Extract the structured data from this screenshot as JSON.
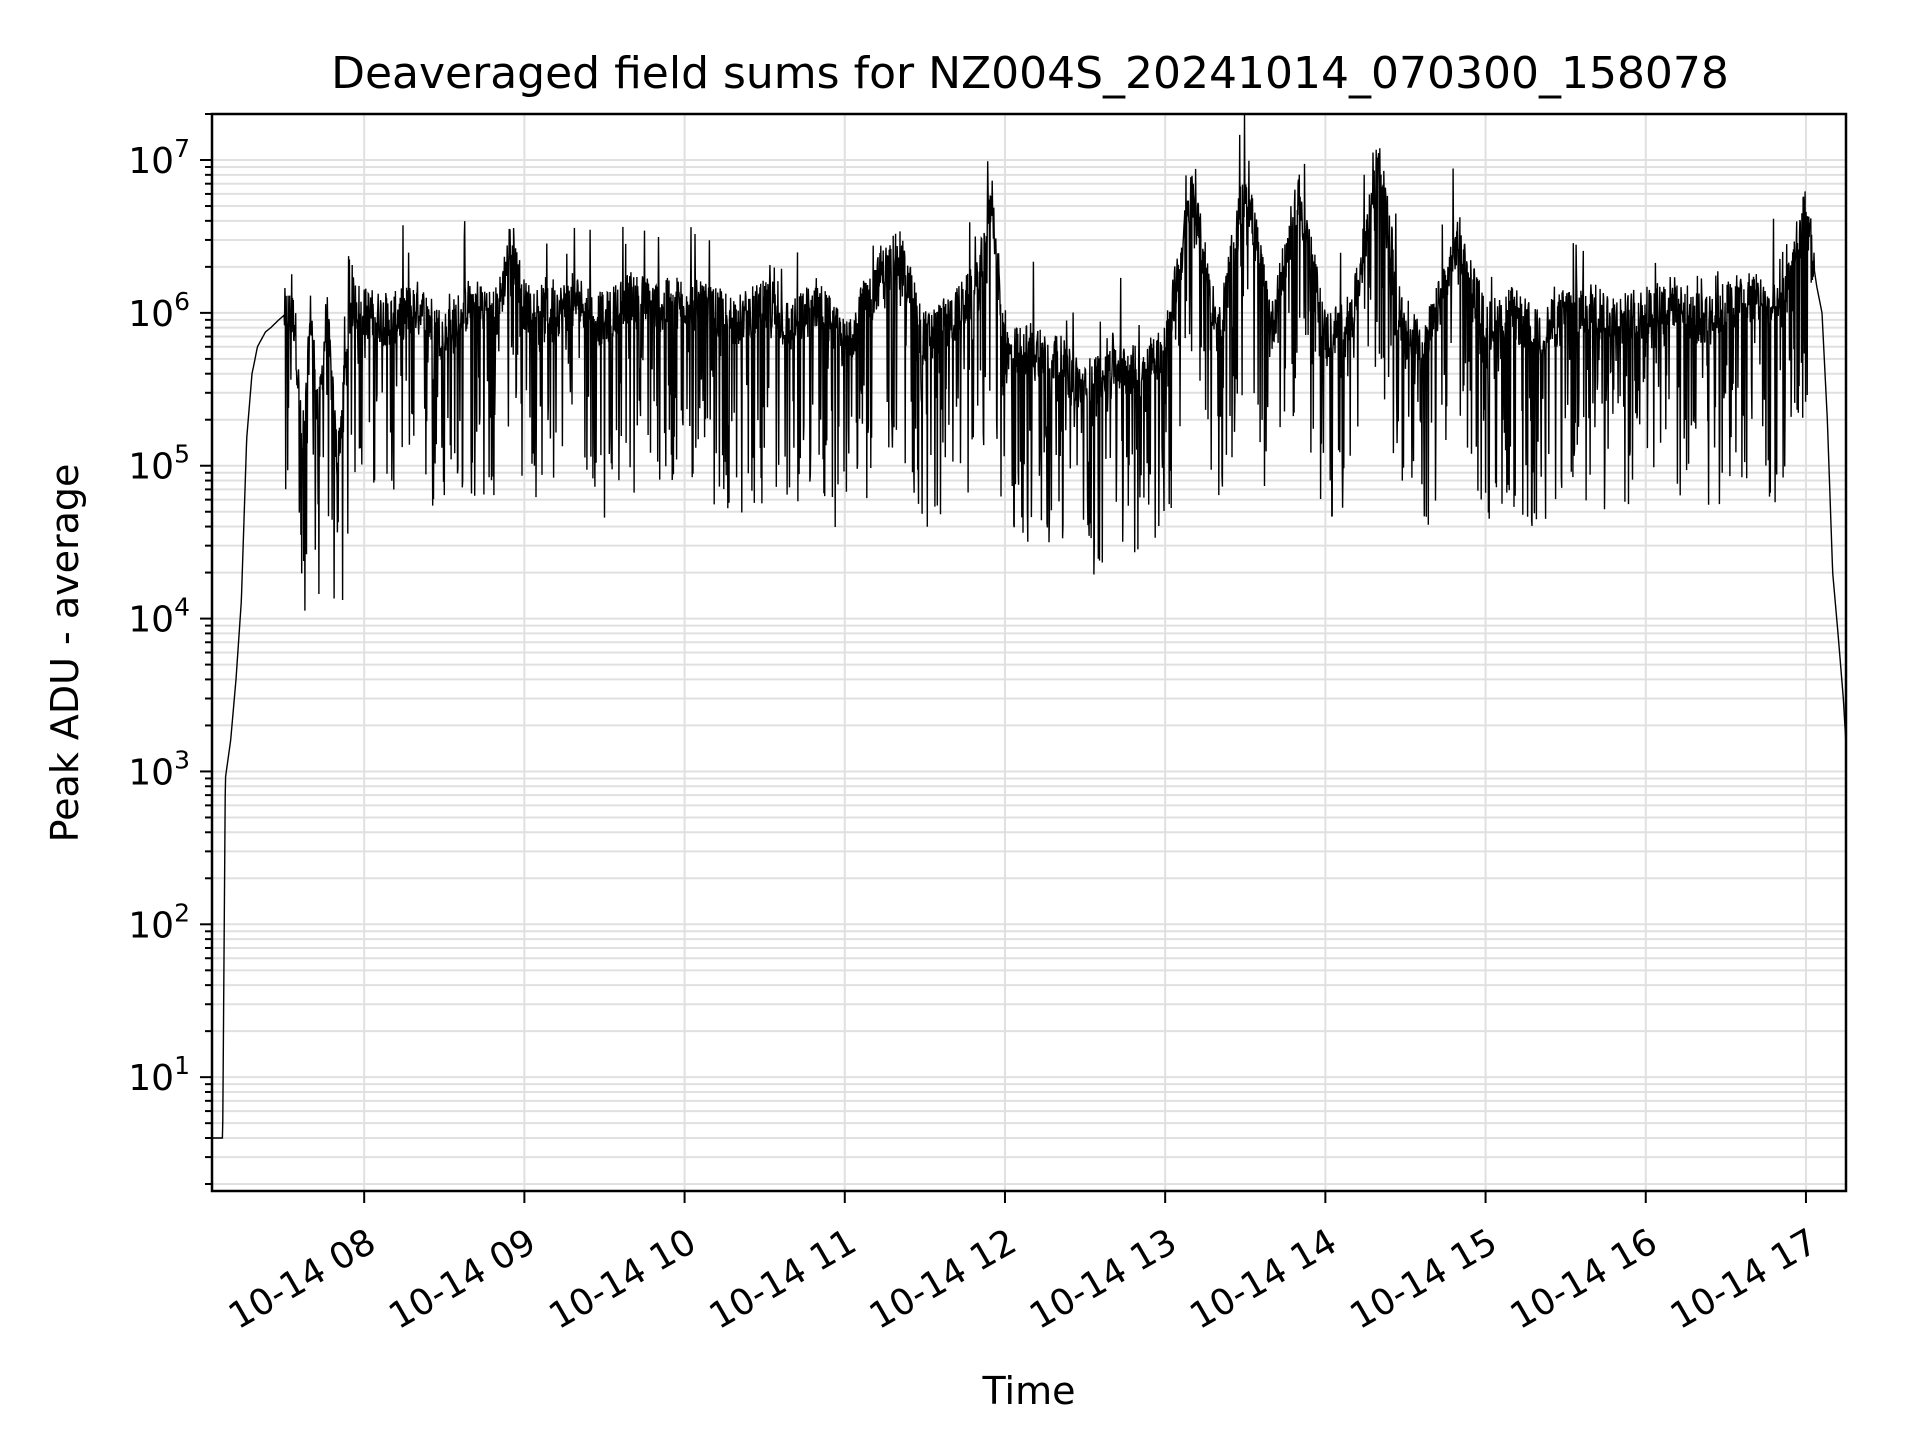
{
  "chart_data": {
    "type": "line",
    "title": "Deaveraged field sums for NZ004S_20241014_070300_158078",
    "xlabel": "Time",
    "ylabel": "Peak ADU - average",
    "yscale": "log",
    "ylim": [
      1.8,
      20000000
    ],
    "xlim": [
      "10-14 07:03",
      "10-14 17:15"
    ],
    "grid": true,
    "line_color": "#000000",
    "grid_color": "#e0e0e0",
    "x_tick_labels": [
      "10-14 08",
      "10-14 09",
      "10-14 10",
      "10-14 11",
      "10-14 12",
      "10-14 13",
      "10-14 14",
      "10-14 15",
      "10-14 16",
      "10-14 17"
    ],
    "y_tick_labels": [
      {
        "base": "10",
        "exp": "1"
      },
      {
        "base": "10",
        "exp": "2"
      },
      {
        "base": "10",
        "exp": "3"
      },
      {
        "base": "10",
        "exp": "4"
      },
      {
        "base": "10",
        "exp": "5"
      },
      {
        "base": "10",
        "exp": "6"
      },
      {
        "base": "10",
        "exp": "7"
      }
    ],
    "series": [
      {
        "x": [
          "10-14 07:03",
          "10-14 07:04",
          "10-14 07:05",
          "10-14 07:06",
          "10-14 07:07",
          "10-14 07:08",
          "10-14 07:09",
          "10-14 07:10",
          "10-14 07:12",
          "10-14 07:14",
          "10-14 07:16",
          "10-14 07:18",
          "10-14 07:20",
          "10-14 07:23",
          "10-14 07:25",
          "10-14 07:28",
          "10-14 07:31",
          "10-14 07:34",
          "10-14 07:37",
          "10-14 07:40",
          "10-14 07:43",
          "10-14 07:46",
          "10-14 07:50",
          "10-14 07:55",
          "10-14 08:00",
          "10-14 08:10",
          "10-14 08:20",
          "10-14 08:30",
          "10-14 08:40",
          "10-14 08:50",
          "10-14 08:55",
          "10-14 09:00",
          "10-14 09:10",
          "10-14 09:20",
          "10-14 09:30",
          "10-14 09:40",
          "10-14 09:50",
          "10-14 10:00",
          "10-14 10:10",
          "10-14 10:20",
          "10-14 10:30",
          "10-14 10:40",
          "10-14 10:50",
          "10-14 11:00",
          "10-14 11:10",
          "10-14 11:20",
          "10-14 11:30",
          "10-14 11:40",
          "10-14 11:50",
          "10-14 11:55",
          "10-14 12:00",
          "10-14 12:10",
          "10-14 12:20",
          "10-14 12:30",
          "10-14 12:40",
          "10-14 12:50",
          "10-14 13:00",
          "10-14 13:10",
          "10-14 13:20",
          "10-14 13:30",
          "10-14 13:40",
          "10-14 13:50",
          "10-14 14:00",
          "10-14 14:10",
          "10-14 14:20",
          "10-14 14:30",
          "10-14 14:40",
          "10-14 14:50",
          "10-14 15:00",
          "10-14 15:10",
          "10-14 15:20",
          "10-14 15:30",
          "10-14 15:40",
          "10-14 15:50",
          "10-14 16:00",
          "10-14 16:10",
          "10-14 16:20",
          "10-14 16:30",
          "10-14 16:40",
          "10-14 16:50",
          "10-14 17:00",
          "10-14 17:04",
          "10-14 17:06",
          "10-14 17:08",
          "10-14 17:10",
          "10-14 17:12",
          "10-14 17:14",
          "10-14 17:15"
        ],
        "y": [
          4,
          4,
          4,
          4,
          4,
          900,
          1200,
          1600,
          4000,
          13000,
          150000,
          400000,
          600000,
          750000,
          800000,
          900000,
          1000000,
          900000,
          100000,
          1000000,
          200000,
          1000000,
          100000,
          1200000,
          1000000,
          900000,
          1100000,
          700000,
          1200000,
          1000000,
          3000000,
          1100000,
          1000000,
          1200000,
          900000,
          1300000,
          1100000,
          1200000,
          1000000,
          900000,
          1100000,
          800000,
          1200000,
          600000,
          1400000,
          2500000,
          700000,
          900000,
          1500000,
          6000000,
          500000,
          600000,
          500000,
          300000,
          500000,
          400000,
          600000,
          6000000,
          700000,
          7000000,
          800000,
          6000000,
          700000,
          900000,
          10000000,
          600000,
          800000,
          3000000,
          800000,
          1000000,
          700000,
          1000000,
          1100000,
          900000,
          1000000,
          1200000,
          900000,
          1100000,
          1300000,
          1000000,
          4500000,
          1500000,
          1000000,
          200000,
          20000,
          8000,
          3000,
          1500
        ]
      }
    ]
  }
}
